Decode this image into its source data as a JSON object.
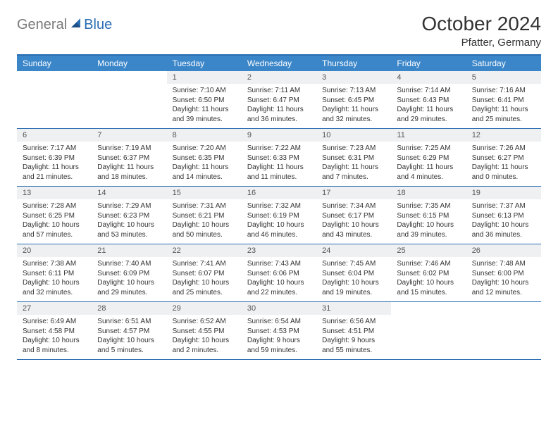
{
  "logo": {
    "part1": "General",
    "part2": "Blue"
  },
  "title": "October 2024",
  "location": "Pfatter, Germany",
  "dow_labels": [
    "Sunday",
    "Monday",
    "Tuesday",
    "Wednesday",
    "Thursday",
    "Friday",
    "Saturday"
  ],
  "colors": {
    "header_bar": "#3b86c9",
    "accent": "#2a6db3",
    "daynum_bg": "#eef0f2",
    "text": "#333333",
    "logo_gray": "#7a7a7a"
  },
  "layout": {
    "weeks": 5,
    "day_fontsize_pt": 8,
    "daynum_fontsize_pt": 8.5,
    "dow_fontsize_pt": 9,
    "title_fontsize_pt": 21,
    "location_fontsize_pt": 11
  },
  "weeks": [
    [
      null,
      null,
      {
        "n": "1",
        "sunrise": "7:10 AM",
        "sunset": "6:50 PM",
        "daylight": "11 hours and 39 minutes."
      },
      {
        "n": "2",
        "sunrise": "7:11 AM",
        "sunset": "6:47 PM",
        "daylight": "11 hours and 36 minutes."
      },
      {
        "n": "3",
        "sunrise": "7:13 AM",
        "sunset": "6:45 PM",
        "daylight": "11 hours and 32 minutes."
      },
      {
        "n": "4",
        "sunrise": "7:14 AM",
        "sunset": "6:43 PM",
        "daylight": "11 hours and 29 minutes."
      },
      {
        "n": "5",
        "sunrise": "7:16 AM",
        "sunset": "6:41 PM",
        "daylight": "11 hours and 25 minutes."
      }
    ],
    [
      {
        "n": "6",
        "sunrise": "7:17 AM",
        "sunset": "6:39 PM",
        "daylight": "11 hours and 21 minutes."
      },
      {
        "n": "7",
        "sunrise": "7:19 AM",
        "sunset": "6:37 PM",
        "daylight": "11 hours and 18 minutes."
      },
      {
        "n": "8",
        "sunrise": "7:20 AM",
        "sunset": "6:35 PM",
        "daylight": "11 hours and 14 minutes."
      },
      {
        "n": "9",
        "sunrise": "7:22 AM",
        "sunset": "6:33 PM",
        "daylight": "11 hours and 11 minutes."
      },
      {
        "n": "10",
        "sunrise": "7:23 AM",
        "sunset": "6:31 PM",
        "daylight": "11 hours and 7 minutes."
      },
      {
        "n": "11",
        "sunrise": "7:25 AM",
        "sunset": "6:29 PM",
        "daylight": "11 hours and 4 minutes."
      },
      {
        "n": "12",
        "sunrise": "7:26 AM",
        "sunset": "6:27 PM",
        "daylight": "11 hours and 0 minutes."
      }
    ],
    [
      {
        "n": "13",
        "sunrise": "7:28 AM",
        "sunset": "6:25 PM",
        "daylight": "10 hours and 57 minutes."
      },
      {
        "n": "14",
        "sunrise": "7:29 AM",
        "sunset": "6:23 PM",
        "daylight": "10 hours and 53 minutes."
      },
      {
        "n": "15",
        "sunrise": "7:31 AM",
        "sunset": "6:21 PM",
        "daylight": "10 hours and 50 minutes."
      },
      {
        "n": "16",
        "sunrise": "7:32 AM",
        "sunset": "6:19 PM",
        "daylight": "10 hours and 46 minutes."
      },
      {
        "n": "17",
        "sunrise": "7:34 AM",
        "sunset": "6:17 PM",
        "daylight": "10 hours and 43 minutes."
      },
      {
        "n": "18",
        "sunrise": "7:35 AM",
        "sunset": "6:15 PM",
        "daylight": "10 hours and 39 minutes."
      },
      {
        "n": "19",
        "sunrise": "7:37 AM",
        "sunset": "6:13 PM",
        "daylight": "10 hours and 36 minutes."
      }
    ],
    [
      {
        "n": "20",
        "sunrise": "7:38 AM",
        "sunset": "6:11 PM",
        "daylight": "10 hours and 32 minutes."
      },
      {
        "n": "21",
        "sunrise": "7:40 AM",
        "sunset": "6:09 PM",
        "daylight": "10 hours and 29 minutes."
      },
      {
        "n": "22",
        "sunrise": "7:41 AM",
        "sunset": "6:07 PM",
        "daylight": "10 hours and 25 minutes."
      },
      {
        "n": "23",
        "sunrise": "7:43 AM",
        "sunset": "6:06 PM",
        "daylight": "10 hours and 22 minutes."
      },
      {
        "n": "24",
        "sunrise": "7:45 AM",
        "sunset": "6:04 PM",
        "daylight": "10 hours and 19 minutes."
      },
      {
        "n": "25",
        "sunrise": "7:46 AM",
        "sunset": "6:02 PM",
        "daylight": "10 hours and 15 minutes."
      },
      {
        "n": "26",
        "sunrise": "7:48 AM",
        "sunset": "6:00 PM",
        "daylight": "10 hours and 12 minutes."
      }
    ],
    [
      {
        "n": "27",
        "sunrise": "6:49 AM",
        "sunset": "4:58 PM",
        "daylight": "10 hours and 8 minutes."
      },
      {
        "n": "28",
        "sunrise": "6:51 AM",
        "sunset": "4:57 PM",
        "daylight": "10 hours and 5 minutes."
      },
      {
        "n": "29",
        "sunrise": "6:52 AM",
        "sunset": "4:55 PM",
        "daylight": "10 hours and 2 minutes."
      },
      {
        "n": "30",
        "sunrise": "6:54 AM",
        "sunset": "4:53 PM",
        "daylight": "9 hours and 59 minutes."
      },
      {
        "n": "31",
        "sunrise": "6:56 AM",
        "sunset": "4:51 PM",
        "daylight": "9 hours and 55 minutes."
      },
      null,
      null
    ]
  ],
  "labels": {
    "sunrise": "Sunrise:",
    "sunset": "Sunset:",
    "daylight": "Daylight:"
  }
}
